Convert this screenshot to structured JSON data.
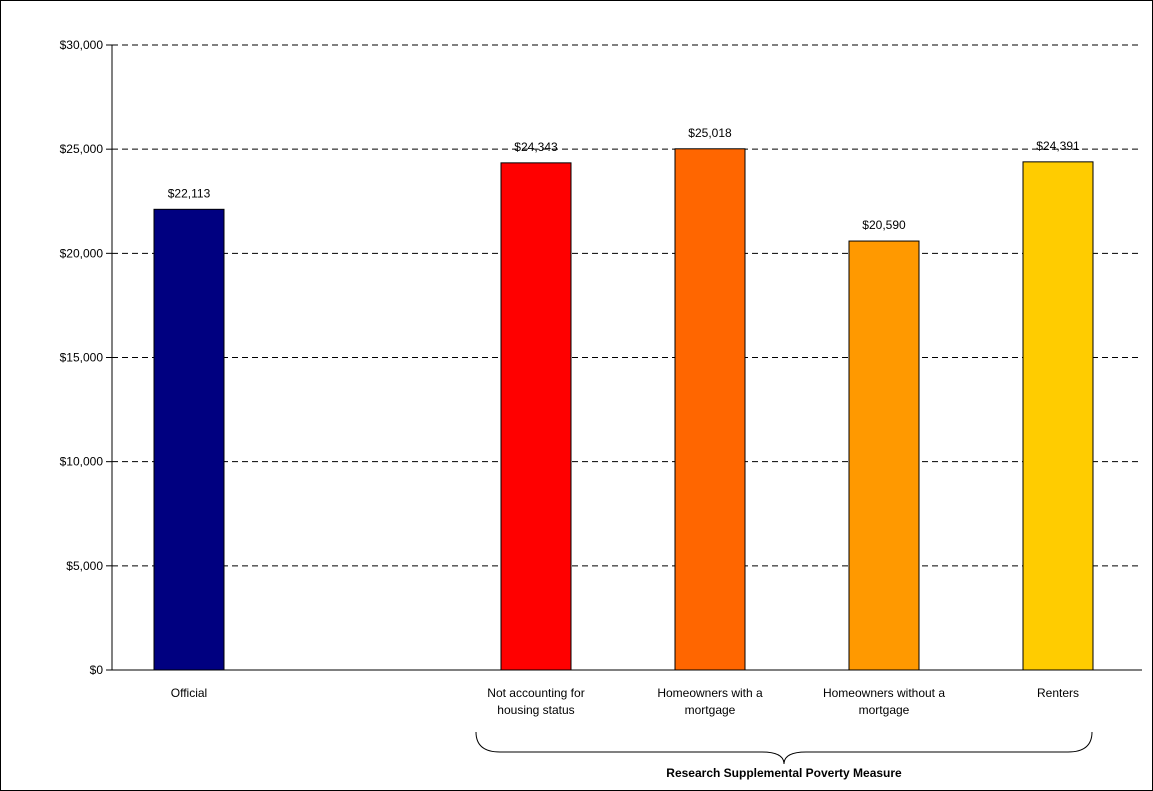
{
  "chart_data": {
    "type": "bar",
    "categories": [
      [
        "Official"
      ],
      [
        "Not accounting for",
        "housing status"
      ],
      [
        "Homeowners with a",
        "mortgage"
      ],
      [
        "Homeowners without a",
        "mortgage"
      ],
      [
        "Renters"
      ]
    ],
    "values": [
      22113,
      24343,
      25018,
      20590,
      24391
    ],
    "value_labels": [
      "$22,113",
      "$24,343",
      "$25,018",
      "$20,590",
      "$24,391"
    ],
    "colors": [
      "#000080",
      "#ff0000",
      "#ff6600",
      "#ff9900",
      "#ffcc00"
    ],
    "ylim": [
      0,
      30000
    ],
    "yticks": [
      0,
      5000,
      10000,
      15000,
      20000,
      25000,
      30000
    ],
    "ytick_labels": [
      "$0",
      "$5,000",
      "$10,000",
      "$15,000",
      "$20,000",
      "$25,000",
      "$30,000"
    ],
    "gridlines": "dashed-horizontal",
    "group_label": "Research Supplemental Poverty Measure"
  }
}
